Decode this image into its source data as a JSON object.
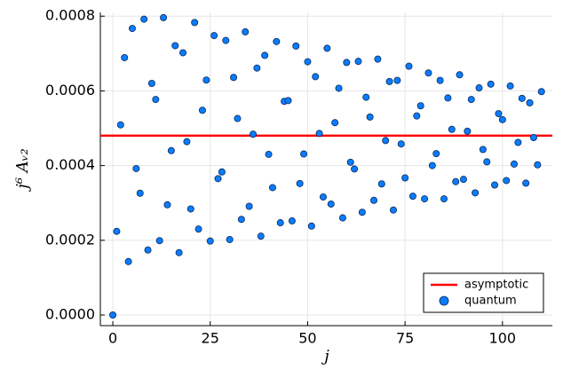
{
  "chart_data": {
    "type": "scatter",
    "xlabel": "j",
    "ylabel": "j⁶ Aᵥ₂",
    "xlim": [
      -3.2,
      112.8
    ],
    "ylim": [
      -2.85e-05,
      0.00081
    ],
    "xticks": [
      0,
      25,
      50,
      75,
      100
    ],
    "yticks": [
      {
        "value": 0,
        "label": "0.0000"
      },
      {
        "value": 0.0002,
        "label": "0.0002"
      },
      {
        "value": 0.0004,
        "label": "0.0004"
      },
      {
        "value": 0.0006,
        "label": "0.0006"
      },
      {
        "value": 0.0008,
        "label": "0.0008"
      }
    ],
    "grid": true,
    "legend": "bottom-right",
    "asymptote": {
      "name": "asymptotic",
      "color": "#ff0000",
      "value": 0.00048
    },
    "series": [
      {
        "name": "quantum",
        "color": "#0a7cff",
        "x": [
          0,
          1,
          2,
          3,
          4,
          5,
          6,
          7,
          8,
          9,
          10,
          11,
          12,
          13,
          14,
          15,
          16,
          17,
          18,
          19,
          20,
          21,
          22,
          23,
          24,
          25,
          26,
          27,
          28,
          29,
          30,
          31,
          32,
          33,
          34,
          35,
          36,
          37,
          38,
          39,
          40,
          41,
          42,
          43,
          44,
          45,
          46,
          47,
          48,
          49,
          50,
          51,
          52,
          53,
          54,
          55,
          56,
          57,
          58,
          59,
          60,
          61,
          62,
          63,
          64,
          65,
          66,
          67,
          68,
          69,
          70,
          71,
          72,
          73,
          74,
          75,
          76,
          77,
          78,
          79,
          80,
          81,
          82,
          83,
          84,
          85,
          86,
          87,
          88,
          89,
          90,
          91,
          92,
          93,
          94,
          95,
          96,
          97,
          98,
          99,
          100,
          101,
          102,
          103,
          104,
          105,
          106,
          107,
          108,
          109,
          110
        ],
        "values": [
          0,
          0.000224,
          0.000509,
          0.000689,
          0.000143,
          0.000767,
          0.000392,
          0.000326,
          0.000792,
          0.000174,
          0.00062,
          0.000577,
          0.000199,
          0.000796,
          0.000295,
          0.00044,
          0.000721,
          0.000167,
          0.000702,
          0.000464,
          0.000284,
          0.000783,
          0.00023,
          0.000548,
          0.000629,
          0.000198,
          0.000748,
          0.000365,
          0.000383,
          0.000735,
          0.000202,
          0.000636,
          0.000526,
          0.000256,
          0.000758,
          0.000291,
          0.000484,
          0.000661,
          0.000211,
          0.000695,
          0.00043,
          0.000341,
          0.000732,
          0.000247,
          0.000572,
          0.000574,
          0.000252,
          0.00072,
          0.000352,
          0.000431,
          0.000678,
          0.000238,
          0.000638,
          0.000486,
          0.000316,
          0.000714,
          0.000297,
          0.000515,
          0.000607,
          0.00026,
          0.000676,
          0.000409,
          0.000391,
          0.000679,
          0.000275,
          0.000583,
          0.00053,
          0.000307,
          0.000685,
          0.000351,
          0.000467,
          0.000625,
          0.000281,
          0.000628,
          0.000458,
          0.000367,
          0.000666,
          0.000318,
          0.000533,
          0.00056,
          0.000311,
          0.000648,
          0.0004,
          0.000432,
          0.000628,
          0.000311,
          0.000581,
          0.000497,
          0.000357,
          0.000643,
          0.000363,
          0.000492,
          0.000577,
          0.000327,
          0.000608,
          0.000443,
          0.00041,
          0.000618,
          0.000348,
          0.000539,
          0.000523,
          0.00036,
          0.000613,
          0.000404,
          0.000462,
          0.00058,
          0.000353,
          0.000568,
          0.000475,
          0.000402,
          0.000598
        ]
      }
    ]
  }
}
